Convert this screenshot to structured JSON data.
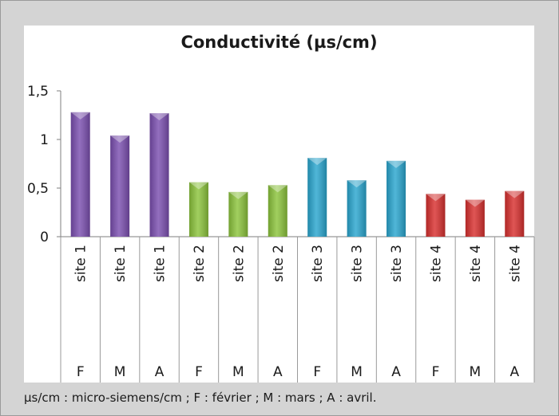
{
  "chart_data": {
    "type": "bar",
    "title": "Conductivité (µs/cm)",
    "xlabel": "",
    "ylabel": "",
    "ylim": [
      0,
      1.5
    ],
    "yticks": [
      "0",
      "0,5",
      "1",
      "1,5"
    ],
    "grid": false,
    "categories": [
      "site 1",
      "site 1",
      "site 1",
      "site 2",
      "site 2",
      "site 2",
      "site 3",
      "site 3",
      "site 3",
      "site 4",
      "site 4",
      "site 4"
    ],
    "months": [
      "F",
      "M",
      "A",
      "F",
      "M",
      "A",
      "F",
      "M",
      "A",
      "F",
      "M",
      "A"
    ],
    "values": [
      1.28,
      1.04,
      1.27,
      0.56,
      0.46,
      0.53,
      0.81,
      0.58,
      0.78,
      0.44,
      0.38,
      0.47
    ],
    "colors": [
      "#7b4fb0",
      "#7b4fb0",
      "#7b4fb0",
      "#8cc43c",
      "#8cc43c",
      "#8cc43c",
      "#2aa6cf",
      "#2aa6cf",
      "#2aa6cf",
      "#d8302f",
      "#d8302f",
      "#d8302f"
    ]
  },
  "footnote": "µs/cm : micro-siemens/cm ; F : février ; M : mars ; A : avril."
}
